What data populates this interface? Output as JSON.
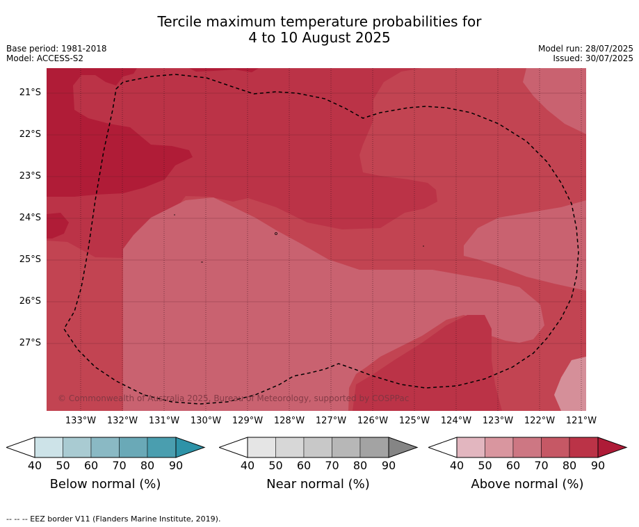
{
  "title_line1": "Tercile maximum temperature probabilities for",
  "title_line2": "4 to 10 August 2025",
  "meta_left": {
    "base_period": "Base period: 1981-2018",
    "model": "Model: ACCESS-S2"
  },
  "meta_right": {
    "model_run": "Model run: 28/07/2025",
    "issued": "Issued: 30/07/2025"
  },
  "lat_labels": [
    "21°S",
    "22°S",
    "23°S",
    "24°S",
    "25°S",
    "26°S",
    "27°S"
  ],
  "lon_labels": [
    "133°W",
    "132°W",
    "131°W",
    "130°W",
    "129°W",
    "128°W",
    "127°W",
    "126°W",
    "125°W",
    "124°W",
    "123°W",
    "122°W",
    "121°W"
  ],
  "copyright": "© Commonwealth of Australia 2025, Bureau of Meteorology, supported by COSPPac",
  "colorbars": [
    {
      "label": "Below normal (%)",
      "ticks": [
        "40",
        "50",
        "60",
        "70",
        "80",
        "90"
      ],
      "colors": [
        "#cde3e8",
        "#a9cbd2",
        "#8ab9c4",
        "#6aa9b7",
        "#4a9eaf",
        "#2e93a8"
      ]
    },
    {
      "label": "Near normal (%)",
      "ticks": [
        "40",
        "50",
        "60",
        "70",
        "80",
        "90"
      ],
      "colors": [
        "#e5e5e5",
        "#d7d7d7",
        "#c8c8c8",
        "#b7b7b7",
        "#a3a3a3",
        "#858585"
      ]
    },
    {
      "label": "Above normal (%)",
      "ticks": [
        "40",
        "50",
        "60",
        "70",
        "80",
        "90"
      ],
      "colors": [
        "#e2b6bf",
        "#d9969f",
        "#cd7783",
        "#c65865",
        "#bb3347",
        "#ae1b37"
      ]
    }
  ],
  "footnote": "--  --  -- EEZ border V11 (Flanders Marine Institute, 2019).",
  "map_colors": {
    "c90": "#b01c37",
    "c80": "#bb3347",
    "c70": "#c24452",
    "c60": "#c96270",
    "c50": "#d58f99"
  }
}
